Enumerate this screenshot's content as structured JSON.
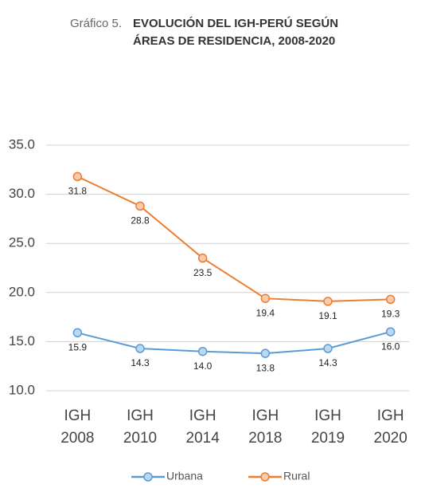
{
  "chart_data": {
    "type": "line",
    "title_prefix": "Gráfico 5.",
    "title": [
      "EVOLUCIÓN DEL IGH-PERÚ SEGÚN",
      "ÁREAS DE RESIDENCIA, 2008-2020"
    ],
    "categories": [
      [
        "IGH",
        "2008"
      ],
      [
        "IGH",
        "2010"
      ],
      [
        "IGH",
        "2014"
      ],
      [
        "IGH",
        "2018"
      ],
      [
        "IGH",
        "2019"
      ],
      [
        "IGH",
        "2020"
      ]
    ],
    "series": [
      {
        "name": "Urbana",
        "color": "#5b9bd5",
        "marker_fill": "#bdd7ee",
        "values": [
          15.9,
          14.3,
          14.0,
          13.8,
          14.3,
          16.0
        ],
        "value_labels": [
          "15.9",
          "14.3",
          "14.0",
          "13.8",
          "14.3",
          "16.0"
        ]
      },
      {
        "name": "Rural",
        "color": "#ed7d31",
        "marker_fill": "#f8cbad",
        "values": [
          31.8,
          28.8,
          23.5,
          19.4,
          19.1,
          19.3
        ],
        "value_labels": [
          "31.8",
          "28.8",
          "23.5",
          "19.4",
          "19.1",
          "19.3"
        ]
      }
    ],
    "ylim": [
      10,
      35
    ],
    "yticks": [
      {
        "value": 10,
        "label": "10.0"
      },
      {
        "value": 15,
        "label": "15.0"
      },
      {
        "value": 20,
        "label": "20.0"
      },
      {
        "value": 25,
        "label": "25.0"
      },
      {
        "value": 30,
        "label": "30.0"
      },
      {
        "value": 35,
        "label": "35.0"
      }
    ],
    "grid": true,
    "legend": "bottom"
  }
}
